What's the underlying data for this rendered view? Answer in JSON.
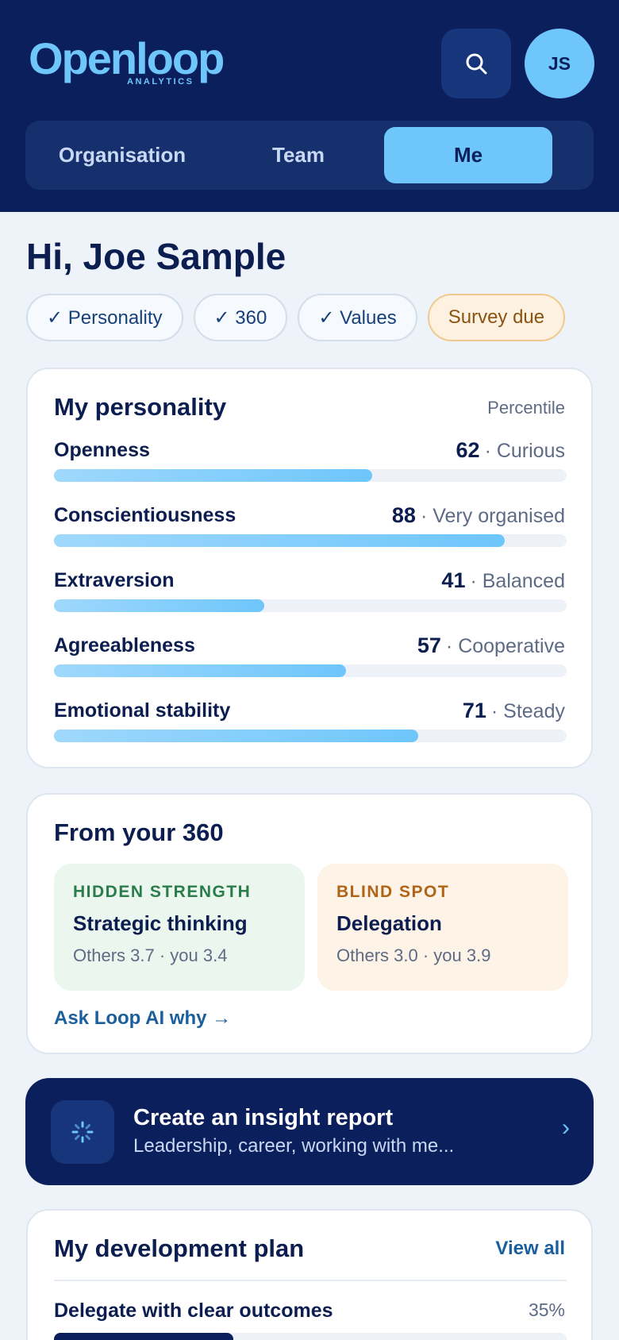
{
  "header": {
    "logo": "Openloop",
    "logo_sub": "ANALYTICS",
    "avatar": "JS"
  },
  "tabs": [
    "Organisation",
    "Team",
    "Me"
  ],
  "active_tab": 2,
  "greeting": "Hi, Joe Sample",
  "chips": [
    "✓ Personality",
    "✓ 360",
    "✓ Values",
    "Survey due"
  ],
  "personality": {
    "title": "My personality",
    "note": "Percentile",
    "xlim": [
      0,
      100
    ],
    "traits": [
      {
        "name": "Openness",
        "value": 62,
        "label": "· Curious"
      },
      {
        "name": "Conscientiousness",
        "value": 88,
        "label": "· Very organised"
      },
      {
        "name": "Extraversion",
        "value": 41,
        "label": "· Balanced"
      },
      {
        "name": "Agreeableness",
        "value": 57,
        "label": "· Cooperative"
      },
      {
        "name": "Emotional stability",
        "value": 71,
        "label": "· Steady"
      }
    ]
  },
  "feedback_360": {
    "title": "From your 360",
    "cards": [
      {
        "kind": "HIDDEN STRENGTH",
        "title": "Strategic thinking",
        "detail": "Others 3.7 · you 3.4"
      },
      {
        "kind": "BLIND SPOT",
        "title": "Delegation",
        "detail": "Others 3.0 · you 3.9"
      }
    ],
    "link": "Ask Loop AI why →"
  },
  "insight_banner": {
    "title": "Create an insight report",
    "subtitle": "Leadership, career, working with me...",
    "chevron": "›"
  },
  "development_plan": {
    "title": "My development plan",
    "link": "View all",
    "xlim": [
      0,
      100
    ],
    "items": [
      {
        "name": "Delegate with clear outcomes",
        "progress": 35,
        "progress_label": "35%"
      }
    ]
  }
}
